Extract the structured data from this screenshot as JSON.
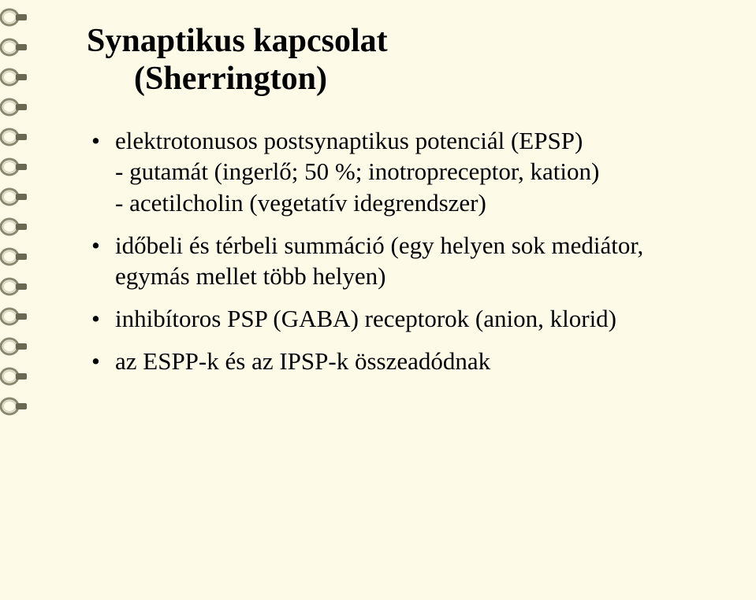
{
  "background_color": "#fdfbe8",
  "text_color": "#000000",
  "ring_count": 14,
  "ring_fill": "#d9d6c2",
  "ring_stroke": "#8a876f",
  "ring_dark": "#6b6852",
  "title": {
    "line1": "Synaptikus kapcsolat",
    "line2": "(Sherrington)",
    "fontsize": 42,
    "weight": "bold"
  },
  "bullets": [
    {
      "line1": "elektrotonusos postsynaptikus potenciál (EPSP)",
      "line2": "- gutamát (ingerlő; 50 %; inotropreceptor, kation)",
      "line3": "- acetilcholin (vegetatív idegrendszer)"
    },
    {
      "line1": "időbeli és térbeli summáció (egy helyen sok mediátor, egymás mellet több helyen)"
    },
    {
      "line1": "inhibítoros PSP (GABA) receptorok (anion, klorid)"
    },
    {
      "line1": "az ESPP-k és az IPSP-k  összeadódnak"
    }
  ],
  "body_fontsize": 31
}
